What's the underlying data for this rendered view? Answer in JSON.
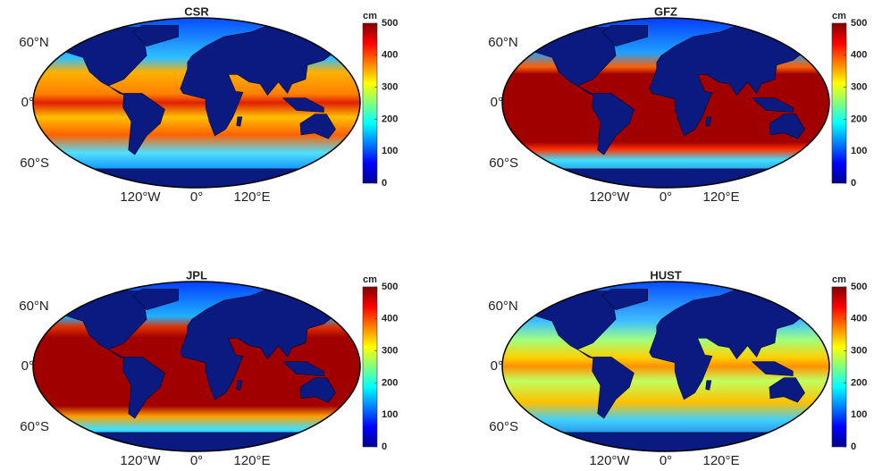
{
  "panels": [
    {
      "title": "CSR",
      "unit": "cm",
      "colorbar": {
        "lim": [
          0,
          500
        ],
        "ticks": [
          0,
          100,
          200,
          300,
          400,
          500
        ]
      }
    },
    {
      "title": "GFZ",
      "unit": "cm",
      "colorbar": {
        "lim": [
          0,
          500
        ],
        "ticks": [
          0,
          100,
          200,
          300,
          400,
          500
        ]
      }
    },
    {
      "title": "JPL",
      "unit": "cm",
      "colorbar": {
        "lim": [
          0,
          500
        ],
        "ticks": [
          0,
          100,
          200,
          300,
          400,
          500
        ]
      }
    },
    {
      "title": "HUST",
      "unit": "cm",
      "colorbar": {
        "lim": [
          0,
          500
        ],
        "ticks": [
          0,
          100,
          200,
          300,
          400,
          500
        ]
      }
    }
  ],
  "lat_labels": [
    "60°N",
    "0°",
    "60°S"
  ],
  "lon_labels": [
    "120°W",
    "0°",
    "120°E"
  ]
}
